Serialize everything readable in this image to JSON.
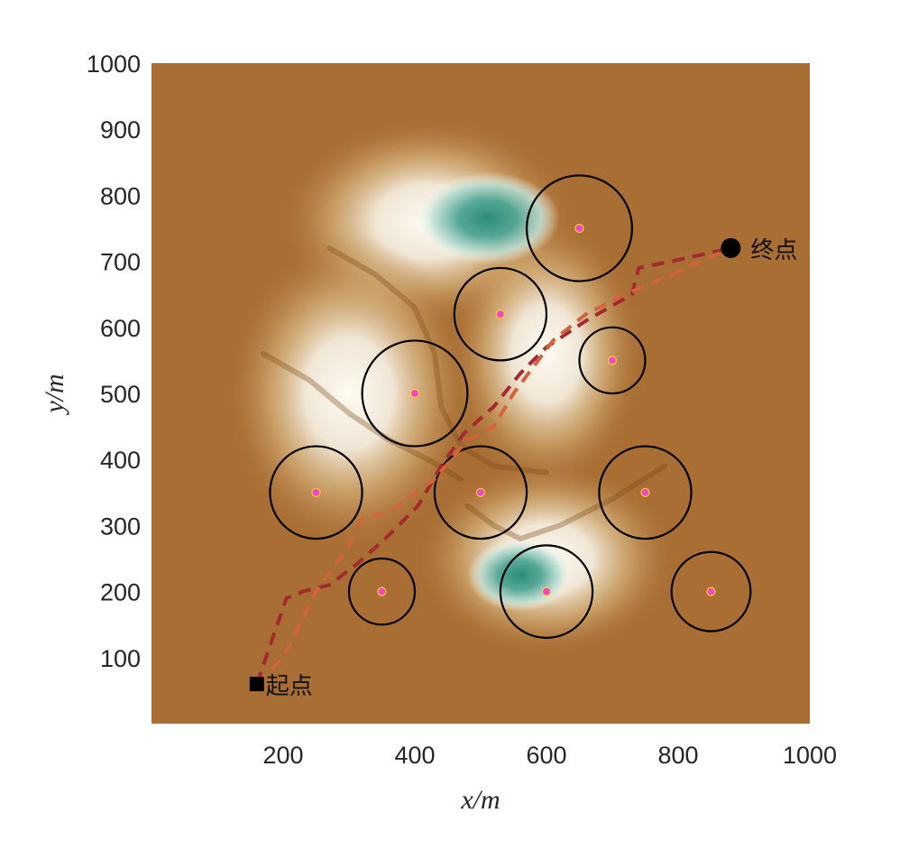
{
  "chart_data": {
    "type": "contour-map",
    "xlabel": "x/m",
    "ylabel": "y/m",
    "xlim": [
      0,
      1000
    ],
    "ylim": [
      0,
      1000
    ],
    "x_ticks": [
      "200",
      "400",
      "600",
      "800",
      "1000"
    ],
    "y_ticks": [
      "100",
      "200",
      "300",
      "400",
      "500",
      "600",
      "700",
      "800",
      "900",
      "1000"
    ],
    "colors": {
      "background": "#a96e33",
      "highlight": "#fdfbf2",
      "teal": "#2b8c78",
      "ridge": "#7a4a18",
      "threat_circle": "#000000",
      "threat_center": "#f046c8",
      "path_primary": "#a22a30",
      "path_secondary": "#d2643a"
    },
    "terrain": {
      "peaks": [
        {
          "x": 420,
          "y": 760,
          "sx": 230,
          "sy": 160
        },
        {
          "x": 300,
          "y": 500,
          "sx": 190,
          "sy": 240
        },
        {
          "x": 600,
          "y": 560,
          "sx": 150,
          "sy": 210
        },
        {
          "x": 600,
          "y": 250,
          "sx": 200,
          "sy": 150
        }
      ],
      "pits": [
        {
          "x": 510,
          "y": 765,
          "sx": 110,
          "sy": 70
        },
        {
          "x": 560,
          "y": 225,
          "sx": 80,
          "sy": 55
        }
      ]
    },
    "threats": [
      {
        "x": 650,
        "y": 750,
        "r": 80
      },
      {
        "x": 530,
        "y": 620,
        "r": 70
      },
      {
        "x": 700,
        "y": 550,
        "r": 50
      },
      {
        "x": 400,
        "y": 500,
        "r": 80
      },
      {
        "x": 250,
        "y": 350,
        "r": 70
      },
      {
        "x": 500,
        "y": 350,
        "r": 70
      },
      {
        "x": 750,
        "y": 350,
        "r": 70
      },
      {
        "x": 350,
        "y": 200,
        "r": 50
      },
      {
        "x": 600,
        "y": 200,
        "r": 70
      },
      {
        "x": 850,
        "y": 200,
        "r": 60
      }
    ],
    "start": {
      "x": 160,
      "y": 60,
      "label": "起点"
    },
    "end": {
      "x": 880,
      "y": 720,
      "label": "终点"
    },
    "series": [
      {
        "x": [
          160,
          205,
          230,
          270,
          310,
          355,
          405,
          440,
          475,
          520,
          560,
          600,
          660,
          730,
          740,
          790,
          880
        ],
        "y": [
          60,
          190,
          200,
          210,
          240,
          280,
          330,
          390,
          440,
          480,
          530,
          570,
          610,
          650,
          690,
          700,
          720
        ]
      },
      {
        "x": [
          160,
          200,
          250,
          300,
          320,
          360,
          430,
          480,
          520,
          550,
          610,
          660,
          720,
          790,
          880
        ],
        "y": [
          60,
          100,
          200,
          270,
          310,
          320,
          370,
          430,
          450,
          500,
          580,
          620,
          650,
          680,
          720
        ]
      }
    ]
  }
}
